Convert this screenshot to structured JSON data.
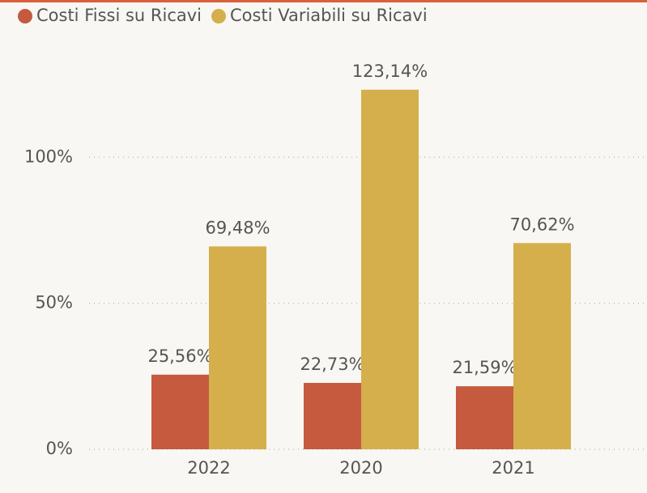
{
  "chart_data": {
    "type": "bar",
    "categories": [
      "2022",
      "2020",
      "2021"
    ],
    "series": [
      {
        "name": "Costi Fissi su Ricavi",
        "color": "#c55a3e",
        "values": [
          25.56,
          22.73,
          21.59
        ],
        "value_labels": [
          "25,56%",
          "22,73%",
          "21,59%"
        ]
      },
      {
        "name": "Costi Variabili su Ricavi",
        "color": "#d4af4c",
        "values": [
          69.48,
          123.14,
          70.62
        ],
        "value_labels": [
          "69,48%",
          "123,14%",
          "70,62%"
        ]
      }
    ],
    "ylim": [
      0,
      140
    ],
    "yticks": [
      {
        "value": 0,
        "label": "0%"
      },
      {
        "value": 50,
        "label": "50%"
      },
      {
        "value": 100,
        "label": "100%"
      }
    ],
    "grid": true,
    "legend": "top-left"
  }
}
